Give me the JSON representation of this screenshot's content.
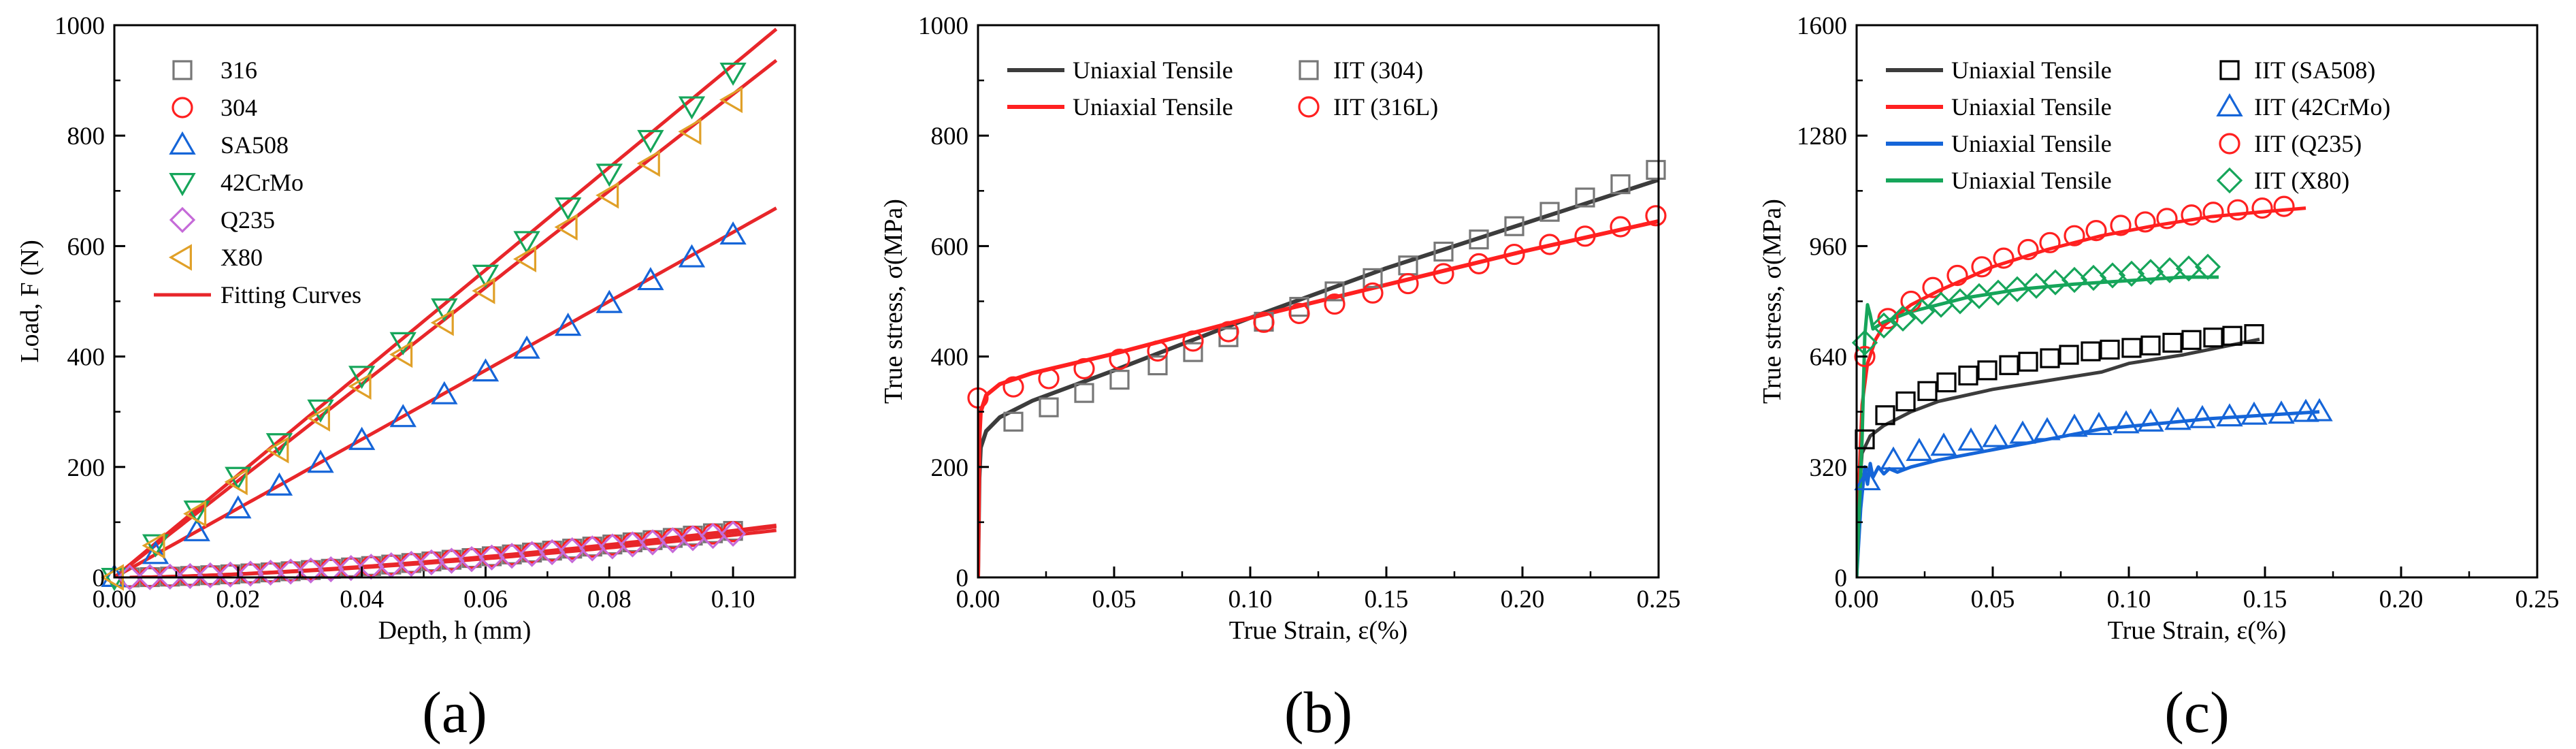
{
  "colors": {
    "black": "#000000",
    "red": "#ff2020",
    "fit_red": "#e8262a",
    "blue": "#1565d8",
    "green": "#16a55a",
    "dark_gray": "#3c3c3c",
    "gray_marker": "#777777",
    "purple": "#c56ad8",
    "orange": "#e0a028"
  },
  "chart_data": [
    {
      "id": "a",
      "panel_label": "(a)",
      "type": "scatter",
      "title": "",
      "xlabel": "Depth, h (mm)",
      "ylabel": "Load, F (N)",
      "xlim": [
        0,
        0.11
      ],
      "ylim": [
        0,
        1000
      ],
      "xticks": [
        0,
        0.02,
        0.04,
        0.06,
        0.08,
        0.1
      ],
      "xtick_labels": [
        "0.00",
        "0.02",
        "0.04",
        "0.06",
        "0.08",
        "0.10"
      ],
      "yticks": [
        0,
        200,
        400,
        600,
        800,
        1000
      ],
      "ytick_labels": [
        "0",
        "200",
        "400",
        "600",
        "800",
        "1000"
      ],
      "legend_position": "top-left",
      "series": [
        {
          "name": "316",
          "kind": "marker",
          "marker": "square",
          "color": "#777777",
          "x0": 0.0025,
          "xmax": 0.1,
          "n": 30,
          "a": 3210,
          "b": 1.6,
          "c": 70
        },
        {
          "name": "304",
          "kind": "marker",
          "marker": "circle",
          "color": "#ff2020",
          "x0": 0.0025,
          "xmax": 0.1,
          "n": 30,
          "a": 3150,
          "b": 1.6,
          "c": 70
        },
        {
          "name": "SA508",
          "kind": "marker",
          "marker": "triangle-up",
          "color": "#1565d8",
          "x0": 0.0,
          "xmax": 0.1,
          "n": 15,
          "a": 6200,
          "b": 1.0,
          "c": 0
        },
        {
          "name": "42CrMo",
          "kind": "marker",
          "marker": "triangle-down",
          "color": "#16a55a",
          "x0": 0.0,
          "xmax": 0.1,
          "n": 15,
          "a": 9150,
          "b": 1.0,
          "c": 0
        },
        {
          "name": "Q235",
          "kind": "marker",
          "marker": "diamond",
          "color": "#c56ad8",
          "x0": 0.0025,
          "xmax": 0.1,
          "n": 30,
          "a": 3000,
          "b": 1.6,
          "c": 70
        },
        {
          "name": "X80",
          "kind": "marker",
          "marker": "triangle-left",
          "color": "#e0a028",
          "x0": 0.0,
          "xmax": 0.1,
          "n": 15,
          "a": 8650,
          "b": 1.0,
          "c": 0
        },
        {
          "name": "Fitting Curves",
          "kind": "line",
          "color": "#e8262a",
          "stroke": 5
        }
      ],
      "fit_curves": [
        {
          "x0": 0.0,
          "a": 9280,
          "b": 1.0,
          "c": 0
        },
        {
          "x0": 0.0,
          "a": 8750,
          "b": 1.0,
          "c": 0
        },
        {
          "x0": 0.0,
          "a": 6250,
          "b": 1.0,
          "c": 0
        },
        {
          "x0": 0.0025,
          "a": 3230,
          "b": 1.6,
          "c": 70
        },
        {
          "x0": 0.0025,
          "a": 3140,
          "b": 1.6,
          "c": 70
        },
        {
          "x0": 0.0025,
          "a": 2890,
          "b": 1.6,
          "c": 70
        }
      ]
    },
    {
      "id": "b",
      "panel_label": "(b)",
      "type": "line",
      "title": "",
      "xlabel": "True Strain, ε(%)",
      "ylabel": "True stress, σ(MPa)",
      "xlim": [
        0,
        0.25
      ],
      "ylim": [
        0,
        1000
      ],
      "xticks": [
        0,
        0.05,
        0.1,
        0.15,
        0.2,
        0.25
      ],
      "xtick_labels": [
        "0.00",
        "0.05",
        "0.10",
        "0.15",
        "0.20",
        "0.25"
      ],
      "yticks": [
        0,
        200,
        400,
        600,
        800,
        1000
      ],
      "ytick_labels": [
        "0",
        "200",
        "400",
        "600",
        "800",
        "1000"
      ],
      "legend_position": "top-left",
      "legend_rows": [
        {
          "line_label": "Uniaxial Tensile",
          "line_color": "#3c3c3c",
          "marker_label": "IIT (304)",
          "marker": "square",
          "marker_color": "#777777"
        },
        {
          "line_label": "Uniaxial Tensile",
          "line_color": "#ff2020",
          "marker_label": "IIT (316L)",
          "marker": "circle",
          "marker_color": "#ff2020"
        }
      ],
      "lines": [
        {
          "name": "Uniaxial Tensile (304)",
          "color": "#3c3c3c",
          "stroke": 6,
          "points": [
            [
              0,
              0
            ],
            [
              0.0005,
              180
            ],
            [
              0.001,
              235
            ],
            [
              0.003,
              265
            ],
            [
              0.008,
              290
            ],
            [
              0.02,
              320
            ],
            [
              0.05,
              375
            ],
            [
              0.1,
              470
            ],
            [
              0.15,
              560
            ],
            [
              0.2,
              640
            ],
            [
              0.25,
              720
            ]
          ]
        },
        {
          "name": "Uniaxial Tensile (316L)",
          "color": "#ff2020",
          "stroke": 6,
          "points": [
            [
              0,
              0
            ],
            [
              0.0005,
              250
            ],
            [
              0.001,
              300
            ],
            [
              0.003,
              330
            ],
            [
              0.008,
              350
            ],
            [
              0.02,
              370
            ],
            [
              0.05,
              405
            ],
            [
              0.1,
              470
            ],
            [
              0.15,
              530
            ],
            [
              0.2,
              590
            ],
            [
              0.25,
              645
            ]
          ]
        }
      ],
      "markers": [
        {
          "name": "IIT (304)",
          "marker": "square",
          "color": "#777777",
          "x": [
            0.013,
            0.026,
            0.039,
            0.052,
            0.066,
            0.079,
            0.092,
            0.105,
            0.118,
            0.131,
            0.145,
            0.158,
            0.171,
            0.184,
            0.197,
            0.21,
            0.223,
            0.236,
            0.249
          ],
          "y": [
            282,
            308,
            334,
            358,
            384,
            408,
            435,
            463,
            490,
            518,
            542,
            565,
            590,
            612,
            636,
            662,
            688,
            712,
            738
          ]
        },
        {
          "name": "IIT (316L)",
          "marker": "circle",
          "color": "#ff2020",
          "x": [
            0.0,
            0.013,
            0.026,
            0.039,
            0.052,
            0.066,
            0.079,
            0.092,
            0.105,
            0.118,
            0.131,
            0.145,
            0.158,
            0.171,
            0.184,
            0.197,
            0.21,
            0.223,
            0.236,
            0.249
          ],
          "y": [
            325,
            345,
            360,
            378,
            395,
            410,
            428,
            445,
            462,
            478,
            495,
            515,
            532,
            550,
            568,
            585,
            603,
            618,
            635,
            655
          ]
        }
      ]
    },
    {
      "id": "c",
      "panel_label": "(c)",
      "type": "line",
      "title": "",
      "xlabel": "True Strain, ε(%)",
      "ylabel": "True stress, σ(MPa)",
      "xlim": [
        0,
        0.25
      ],
      "ylim": [
        0,
        1600
      ],
      "xticks": [
        0,
        0.05,
        0.1,
        0.15,
        0.2,
        0.25
      ],
      "xtick_labels": [
        "0.00",
        "0.05",
        "0.10",
        "0.15",
        "0.20",
        "0.25"
      ],
      "yticks": [
        0,
        320,
        640,
        960,
        1280,
        1600
      ],
      "ytick_labels": [
        "0",
        "320",
        "640",
        "960",
        "1280",
        "1600"
      ],
      "legend_position": "top-left",
      "legend_rows": [
        {
          "line_label": "Uniaxial Tensile",
          "line_color": "#3c3c3c",
          "marker_label": "IIT (SA508)",
          "marker": "square",
          "marker_color": "#000000"
        },
        {
          "line_label": "Uniaxial Tensile",
          "line_color": "#ff2020",
          "marker_label": "IIT (42CrMo)",
          "marker": "triangle-up",
          "marker_color": "#1565d8"
        },
        {
          "line_label": "Uniaxial Tensile",
          "line_color": "#1565d8",
          "marker_label": "IIT (Q235)",
          "marker": "circle",
          "marker_color": "#ff2020"
        },
        {
          "line_label": "Uniaxial Tensile",
          "line_color": "#16a55a",
          "marker_label": "IIT (X80)",
          "marker": "diamond",
          "marker_color": "#16a55a"
        }
      ],
      "lines": [
        {
          "name": "Uniaxial Tensile (SA508)",
          "color": "#3c3c3c",
          "stroke": 5,
          "points": [
            [
              0,
              0
            ],
            [
              0.001,
              250
            ],
            [
              0.002,
              360
            ],
            [
              0.005,
              410
            ],
            [
              0.01,
              440
            ],
            [
              0.02,
              480
            ],
            [
              0.03,
              510
            ],
            [
              0.05,
              545
            ],
            [
              0.07,
              570
            ],
            [
              0.09,
              595
            ],
            [
              0.1,
              620
            ],
            [
              0.12,
              645
            ],
            [
              0.148,
              690
            ]
          ]
        },
        {
          "name": "Uniaxial Tensile (42CrMo)",
          "color": "#ff2020",
          "stroke": 5,
          "points": [
            [
              0,
              0
            ],
            [
              0.001,
              300
            ],
            [
              0.002,
              500
            ],
            [
              0.004,
              620
            ],
            [
              0.007,
              690
            ],
            [
              0.01,
              730
            ],
            [
              0.02,
              790
            ],
            [
              0.03,
              830
            ],
            [
              0.05,
              900
            ],
            [
              0.07,
              950
            ],
            [
              0.09,
              990
            ],
            [
              0.11,
              1020
            ],
            [
              0.13,
              1045
            ],
            [
              0.15,
              1060
            ],
            [
              0.165,
              1070
            ]
          ]
        },
        {
          "name": "Uniaxial Tensile (Q235)",
          "color": "#1565d8",
          "stroke": 5,
          "points": [
            [
              0,
              0
            ],
            [
              0.0015,
              200
            ],
            [
              0.003,
              320
            ],
            [
              0.004,
              270
            ],
            [
              0.005,
              330
            ],
            [
              0.006,
              290
            ],
            [
              0.008,
              320
            ],
            [
              0.01,
              300
            ],
            [
              0.012,
              315
            ],
            [
              0.015,
              305
            ],
            [
              0.02,
              320
            ],
            [
              0.03,
              340
            ],
            [
              0.05,
              370
            ],
            [
              0.07,
              400
            ],
            [
              0.09,
              430
            ],
            [
              0.11,
              445
            ],
            [
              0.13,
              460
            ],
            [
              0.15,
              470
            ],
            [
              0.17,
              480
            ]
          ]
        },
        {
          "name": "Uniaxial Tensile (X80)",
          "color": "#16a55a",
          "stroke": 5,
          "points": [
            [
              0,
              0
            ],
            [
              0.002,
              400
            ],
            [
              0.003,
              700
            ],
            [
              0.004,
              790
            ],
            [
              0.005,
              760
            ],
            [
              0.006,
              720
            ],
            [
              0.008,
              730
            ],
            [
              0.01,
              740
            ],
            [
              0.02,
              770
            ],
            [
              0.04,
              810
            ],
            [
              0.06,
              835
            ],
            [
              0.08,
              850
            ],
            [
              0.1,
              860
            ],
            [
              0.12,
              870
            ],
            [
              0.133,
              870
            ]
          ]
        }
      ],
      "markers": [
        {
          "name": "IIT (SA508)",
          "marker": "square",
          "color": "#000000",
          "x": [
            0.003,
            0.0105,
            0.018,
            0.026,
            0.033,
            0.041,
            0.048,
            0.056,
            0.063,
            0.071,
            0.078,
            0.086,
            0.093,
            0.101,
            0.108,
            0.116,
            0.123,
            0.131,
            0.138,
            0.146
          ],
          "y": [
            400,
            470,
            510,
            540,
            565,
            585,
            600,
            615,
            625,
            635,
            645,
            655,
            660,
            665,
            672,
            680,
            688,
            695,
            700,
            705
          ]
        },
        {
          "name": "IIT (42CrMo)",
          "marker": "triangle-up",
          "color": "#1565d8",
          "x": [
            0.004,
            0.0135,
            0.023,
            0.032,
            0.042,
            0.051,
            0.061,
            0.07,
            0.08,
            0.089,
            0.099,
            0.108,
            0.118,
            0.127,
            0.137,
            0.146,
            0.156,
            0.165,
            0.17
          ],
          "y": [
            280,
            340,
            365,
            380,
            395,
            405,
            415,
            425,
            435,
            440,
            445,
            450,
            455,
            460,
            465,
            470,
            473,
            478,
            480
          ]
        },
        {
          "name": "IIT (Q235)",
          "marker": "circle",
          "color": "#ff2020",
          "x": [
            0.003,
            0.0115,
            0.02,
            0.028,
            0.037,
            0.046,
            0.054,
            0.063,
            0.071,
            0.08,
            0.088,
            0.097,
            0.106,
            0.114,
            0.123,
            0.131,
            0.14,
            0.149,
            0.157
          ],
          "y": [
            640,
            750,
            800,
            840,
            875,
            900,
            925,
            950,
            970,
            990,
            1005,
            1020,
            1030,
            1040,
            1050,
            1058,
            1065,
            1070,
            1075
          ]
        },
        {
          "name": "IIT (X80)",
          "marker": "diamond",
          "color": "#16a55a",
          "x": [
            0.003,
            0.01,
            0.017,
            0.024,
            0.031,
            0.038,
            0.045,
            0.052,
            0.059,
            0.066,
            0.073,
            0.08,
            0.087,
            0.094,
            0.101,
            0.108,
            0.115,
            0.122,
            0.129
          ],
          "y": [
            680,
            730,
            750,
            770,
            790,
            800,
            815,
            825,
            835,
            845,
            855,
            862,
            868,
            875,
            880,
            885,
            890,
            895,
            900
          ]
        }
      ]
    }
  ]
}
